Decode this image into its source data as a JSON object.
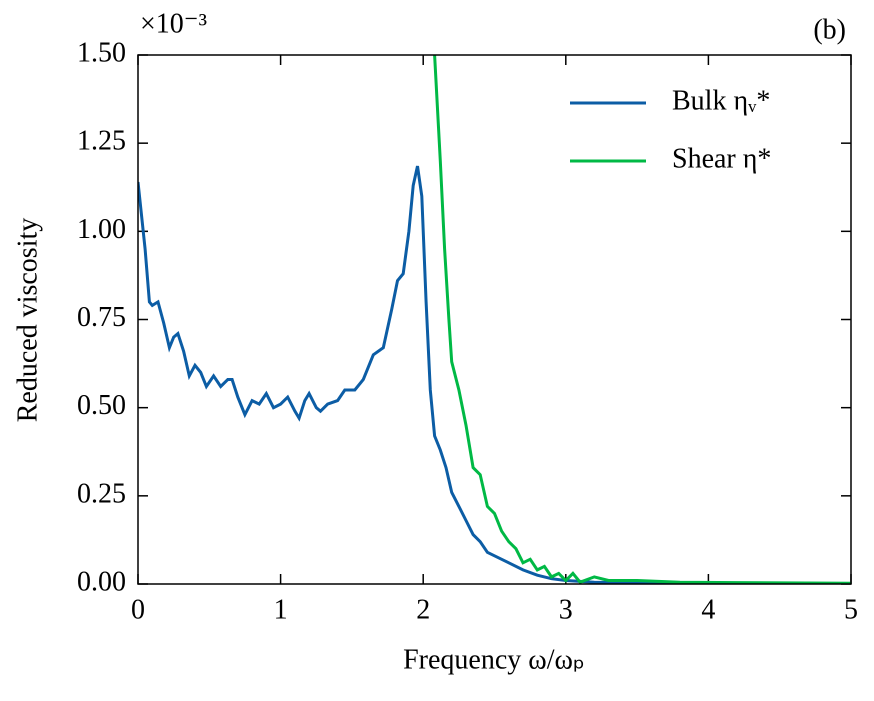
{
  "chart_data": {
    "type": "line",
    "annotation": "(b)",
    "multiplier": "×10⁻³",
    "xlabel": "Frequency ω/ωₚ",
    "ylabel": "Reduced viscosity",
    "xlim": [
      0,
      5
    ],
    "ylim": [
      0,
      1.5
    ],
    "xticks": [
      0,
      1,
      2,
      3,
      4,
      5
    ],
    "yticks": [
      {
        "value": 0,
        "label": "0.00"
      },
      0.25,
      {
        "value": 0.5,
        "label": "0.50"
      },
      0.75,
      {
        "value": 1,
        "label": "1.00"
      },
      1.25,
      {
        "value": 1.5,
        "label": "1.50"
      }
    ],
    "legend": "upper right",
    "series": [
      {
        "name": "Bulk ηᵥ*",
        "color": "#0c5da5",
        "x": [
          0,
          0.05,
          0.08,
          0.1,
          0.14,
          0.18,
          0.22,
          0.25,
          0.28,
          0.32,
          0.36,
          0.4,
          0.44,
          0.48,
          0.53,
          0.58,
          0.63,
          0.66,
          0.7,
          0.75,
          0.8,
          0.85,
          0.9,
          0.95,
          1.0,
          1.05,
          1.1,
          1.13,
          1.17,
          1.2,
          1.25,
          1.28,
          1.33,
          1.4,
          1.45,
          1.52,
          1.58,
          1.65,
          1.72,
          1.78,
          1.82,
          1.86,
          1.9,
          1.93,
          1.96,
          1.99,
          2.02,
          2.05,
          2.08,
          2.12,
          2.16,
          2.2,
          2.25,
          2.3,
          2.35,
          2.4,
          2.45,
          2.5,
          2.6,
          2.7,
          2.8,
          2.9,
          3.0,
          3.2,
          3.5,
          4.0,
          5.0
        ],
        "values": [
          1.14,
          0.95,
          0.8,
          0.79,
          0.8,
          0.74,
          0.67,
          0.7,
          0.71,
          0.66,
          0.59,
          0.62,
          0.6,
          0.56,
          0.59,
          0.56,
          0.58,
          0.58,
          0.53,
          0.48,
          0.52,
          0.51,
          0.54,
          0.5,
          0.51,
          0.53,
          0.49,
          0.47,
          0.52,
          0.54,
          0.5,
          0.49,
          0.51,
          0.52,
          0.55,
          0.55,
          0.58,
          0.65,
          0.67,
          0.78,
          0.86,
          0.88,
          1.0,
          1.13,
          1.185,
          1.1,
          0.8,
          0.55,
          0.42,
          0.38,
          0.33,
          0.26,
          0.22,
          0.18,
          0.14,
          0.12,
          0.09,
          0.08,
          0.06,
          0.04,
          0.025,
          0.015,
          0.01,
          0.005,
          0.003,
          0.002,
          0.001
        ]
      },
      {
        "name": "Shear η*",
        "color": "#00b945",
        "x": [
          2.08,
          2.12,
          2.15,
          2.18,
          2.2,
          2.25,
          2.3,
          2.35,
          2.4,
          2.45,
          2.5,
          2.55,
          2.6,
          2.65,
          2.7,
          2.75,
          2.8,
          2.85,
          2.9,
          2.95,
          3.0,
          3.05,
          3.1,
          3.2,
          3.3,
          3.5,
          3.8,
          4.2,
          5.0
        ],
        "values": [
          1.5,
          1.2,
          0.95,
          0.75,
          0.63,
          0.55,
          0.45,
          0.33,
          0.31,
          0.22,
          0.2,
          0.15,
          0.12,
          0.1,
          0.06,
          0.07,
          0.04,
          0.05,
          0.02,
          0.03,
          0.01,
          0.03,
          0.005,
          0.02,
          0.01,
          0.01,
          0.005,
          0.004,
          0.002
        ]
      }
    ]
  }
}
